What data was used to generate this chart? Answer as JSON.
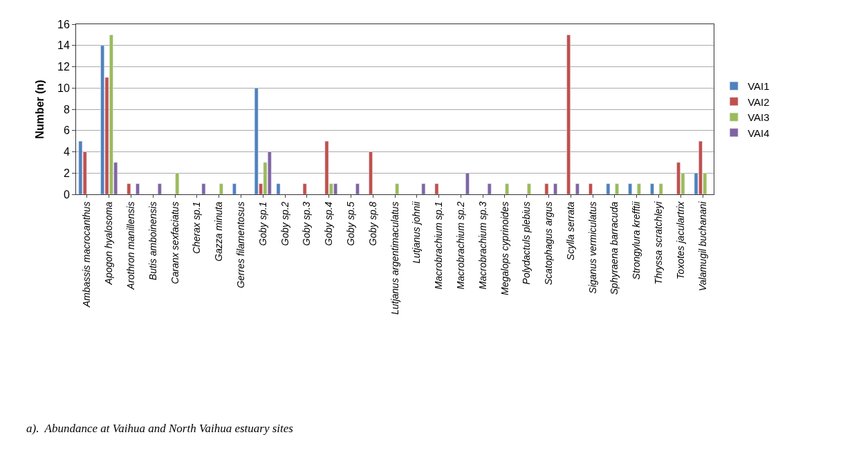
{
  "chart_data": {
    "type": "bar",
    "ylabel": "Number (n)",
    "ylim": [
      0,
      16
    ],
    "yticks": [
      0,
      2,
      4,
      6,
      8,
      10,
      12,
      14,
      16
    ],
    "grid": "y",
    "legend": "right",
    "categories": [
      "Ambassis macrocanthus",
      "Apogon hyalosoma",
      "Arothron manillensis",
      "Butis amboinensis",
      "Caranx sexfaciatus",
      "Cherax sp.1",
      "Gazza minuta",
      "Gerres filamentosus",
      "Goby sp.1",
      "Goby sp.2",
      "Goby sp.3",
      "Goby sp.4",
      "Goby sp.5",
      "Goby sp.8",
      "Lutjanus argentimaculatus",
      "Lutjanus johnii",
      "Macrobrachium sp.1",
      "Macrobrachium sp.2",
      "Macrobrachium sp.3",
      "Megalops cyprinoides",
      "Polydactuls plebius",
      "Scatophagus argus",
      "Scylla serrata",
      "Siganus vermiculatus",
      "Sphyraena barracuda",
      "Strongylura krefftii",
      "Thryssa scratchleyi",
      "Toxotes jaculartrix",
      "Valamugil buchanani"
    ],
    "series": [
      {
        "name": "VAI1",
        "color": "#4f81bd",
        "values": [
          5,
          14,
          null,
          null,
          null,
          null,
          null,
          1,
          10,
          1,
          null,
          null,
          null,
          null,
          null,
          null,
          null,
          null,
          null,
          null,
          null,
          null,
          null,
          null,
          1,
          1,
          1,
          null,
          2
        ]
      },
      {
        "name": "VAI2",
        "color": "#c0504d",
        "values": [
          4,
          11,
          1,
          null,
          null,
          null,
          null,
          null,
          1,
          null,
          1,
          5,
          null,
          4,
          null,
          null,
          1,
          null,
          null,
          null,
          null,
          1,
          15,
          1,
          null,
          null,
          null,
          3,
          5
        ]
      },
      {
        "name": "VAI3",
        "color": "#9bbb59",
        "values": [
          null,
          15,
          null,
          null,
          2,
          null,
          1,
          null,
          3,
          null,
          null,
          1,
          null,
          null,
          1,
          null,
          null,
          null,
          null,
          1,
          1,
          null,
          null,
          null,
          1,
          1,
          1,
          2,
          2
        ]
      },
      {
        "name": "VAI4",
        "color": "#8064a2",
        "values": [
          null,
          3,
          1,
          1,
          null,
          1,
          null,
          null,
          4,
          null,
          null,
          1,
          1,
          null,
          null,
          1,
          null,
          2,
          1,
          null,
          null,
          1,
          1,
          null,
          null,
          null,
          null,
          null,
          null
        ]
      }
    ],
    "annotations": [
      "a).  Abundance at Vaihua and North Vaihua estuary sites"
    ]
  }
}
